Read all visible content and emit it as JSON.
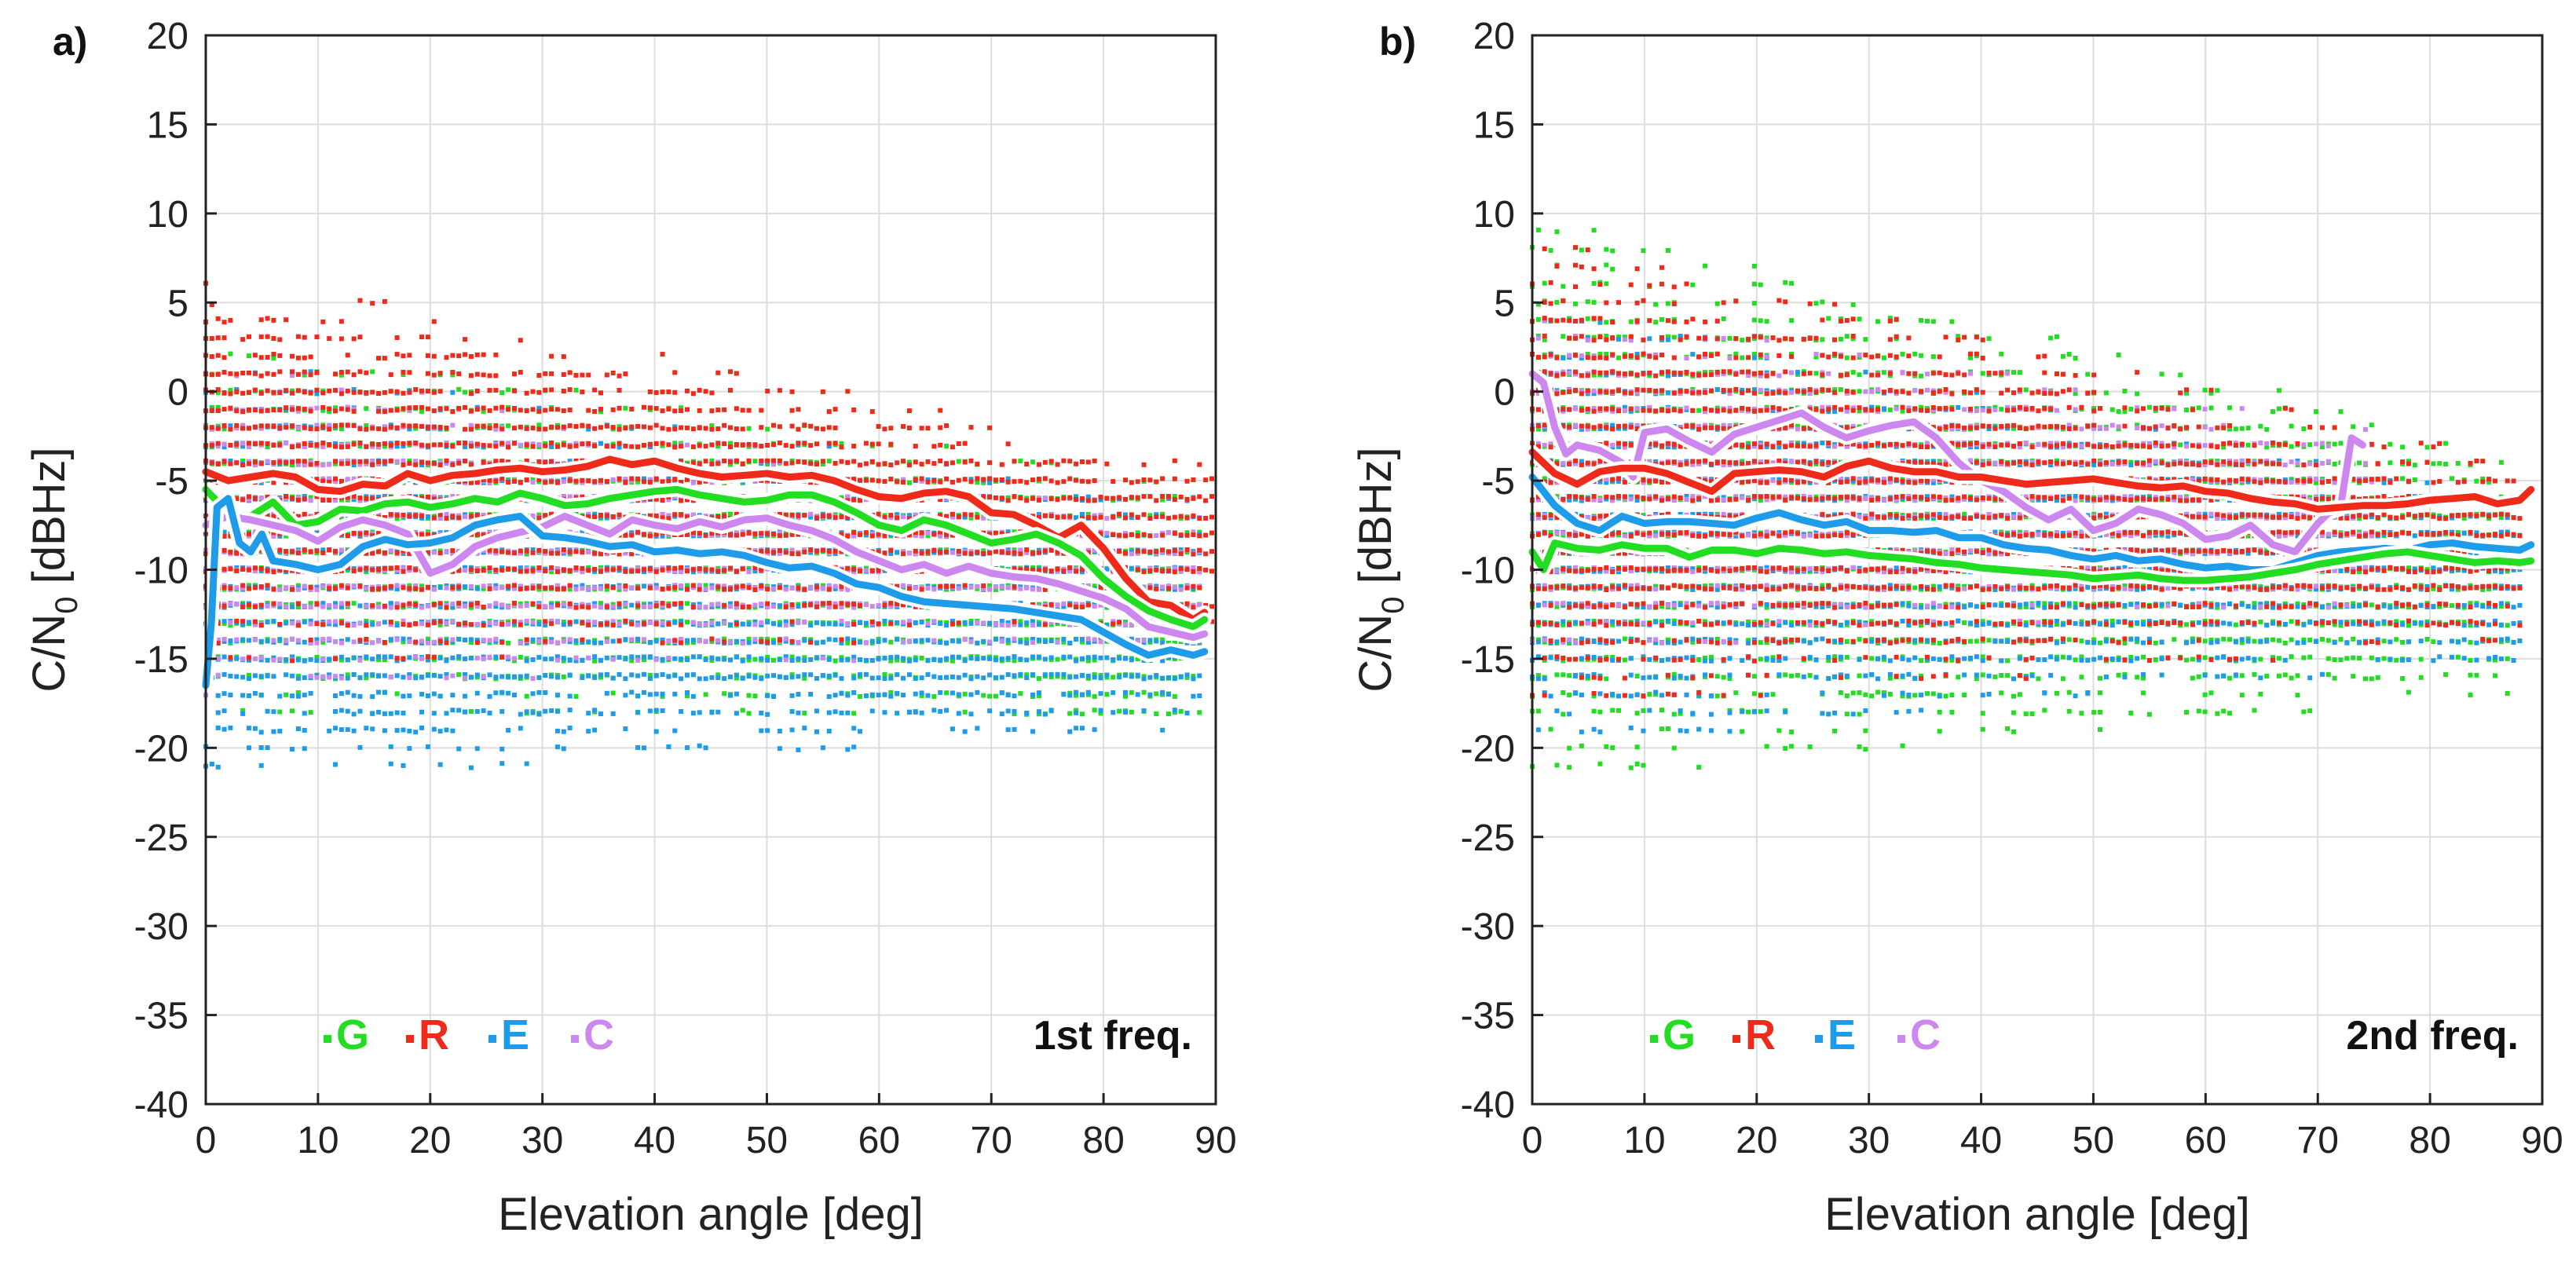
{
  "colors": {
    "G": "#22dd22",
    "R": "#ee2a1a",
    "E": "#1e9be9",
    "C": "#cc88ee",
    "axis": "#222222",
    "grid": "#dddddd"
  },
  "chart_data": [
    {
      "type": "scatter",
      "panel_label": "a)",
      "freq_label": "1st freq.",
      "xlabel": "Elevation angle [deg]",
      "ylabel_main": "C/N",
      "ylabel_sub": "0",
      "ylabel_tail": " [dBHz]",
      "xlim": [
        0,
        90
      ],
      "ylim": [
        -40,
        20
      ],
      "xticks": [
        0,
        10,
        20,
        30,
        40,
        50,
        60,
        70,
        80,
        90
      ],
      "yticks": [
        -40,
        -35,
        -30,
        -25,
        -20,
        -15,
        -10,
        -5,
        0,
        5,
        10,
        15,
        20
      ],
      "grid": true,
      "legend": [
        {
          "key": "G",
          "label": "G"
        },
        {
          "key": "R",
          "label": "R"
        },
        {
          "key": "E",
          "label": "E"
        },
        {
          "key": "C",
          "label": "C"
        }
      ],
      "scatter_ranges": {
        "G": {
          "x": [
            0,
            89
          ],
          "y_top_start": 3,
          "y_top_end": -5,
          "y_bottom_start": -18,
          "y_bottom_end": -20
        },
        "R": {
          "x": [
            0,
            90
          ],
          "y_top_start": 7,
          "y_top_end": -4,
          "y_bottom_start": -16,
          "y_bottom_end": -13
        },
        "E": {
          "x": [
            0,
            89
          ],
          "y_top_start": 2,
          "y_top_end": -6,
          "y_bottom_start": -22,
          "y_bottom_end": -19
        },
        "C": {
          "x": [
            0,
            89
          ],
          "y_top_start": 2,
          "y_top_end": -7,
          "y_bottom_start": -17,
          "y_bottom_end": -14
        }
      },
      "series": [
        {
          "name": "R",
          "x": [
            0,
            2,
            4,
            6,
            8,
            10,
            12,
            14,
            16,
            18,
            20,
            22,
            24,
            26,
            28,
            30,
            32,
            34,
            36,
            38,
            40,
            42,
            44,
            46,
            48,
            50,
            52,
            54,
            56,
            58,
            60,
            62,
            64,
            66,
            68,
            70,
            72,
            74,
            76,
            78,
            80,
            82,
            84,
            86,
            88,
            89
          ],
          "y": [
            -4.5,
            -5,
            -4.8,
            -4.6,
            -4.8,
            -5.5,
            -5.6,
            -5.2,
            -5.3,
            -4.6,
            -5,
            -4.7,
            -4.6,
            -4.4,
            -4.3,
            -4.5,
            -4.4,
            -4.2,
            -3.8,
            -4.1,
            -3.9,
            -4.3,
            -4.6,
            -4.8,
            -4.7,
            -4.6,
            -4.8,
            -4.7,
            -5,
            -5.5,
            -5.9,
            -6,
            -5.7,
            -5.6,
            -5.9,
            -6.8,
            -6.9,
            -7.5,
            -8.2,
            -7.5,
            -8.8,
            -10.5,
            -11.8,
            -12,
            -12.8,
            -12.4
          ]
        },
        {
          "name": "G",
          "x": [
            0,
            2,
            4,
            6,
            8,
            10,
            12,
            14,
            16,
            18,
            20,
            22,
            24,
            26,
            28,
            30,
            32,
            34,
            36,
            38,
            40,
            42,
            44,
            46,
            48,
            50,
            52,
            54,
            56,
            58,
            60,
            62,
            64,
            66,
            68,
            70,
            72,
            74,
            76,
            78,
            80,
            82,
            84,
            86,
            88,
            89
          ],
          "y": [
            -5.5,
            -6.8,
            -7,
            -6.2,
            -7.5,
            -7.3,
            -6.6,
            -6.7,
            -6.3,
            -6.2,
            -6.5,
            -6.3,
            -6,
            -6.2,
            -5.7,
            -6,
            -6.4,
            -6.3,
            -6,
            -5.8,
            -5.6,
            -5.5,
            -5.8,
            -6,
            -6.2,
            -6.1,
            -5.8,
            -5.8,
            -6.2,
            -6.8,
            -7.5,
            -7.8,
            -7.2,
            -7.5,
            -8,
            -8.5,
            -8.3,
            -8,
            -8.5,
            -9.2,
            -10.5,
            -11.5,
            -12.3,
            -12.8,
            -13.2,
            -12.8
          ]
        },
        {
          "name": "C",
          "x": [
            0,
            2,
            4,
            6,
            8,
            10,
            12,
            14,
            16,
            18,
            20,
            22,
            24,
            26,
            28,
            30,
            32,
            34,
            36,
            38,
            40,
            42,
            44,
            46,
            48,
            50,
            52,
            54,
            56,
            58,
            60,
            62,
            64,
            66,
            68,
            70,
            72,
            74,
            76,
            78,
            80,
            82,
            84,
            86,
            88,
            89
          ],
          "y": [
            -7.5,
            -7,
            -7.2,
            -7.5,
            -7.8,
            -8.4,
            -7.6,
            -7.2,
            -7.5,
            -8,
            -10.2,
            -9.7,
            -8.7,
            -8.2,
            -7.9,
            -7.6,
            -7,
            -7.5,
            -8,
            -7.2,
            -7.5,
            -7.7,
            -7.3,
            -7.6,
            -7.2,
            -7.1,
            -7.5,
            -7.8,
            -8.3,
            -9,
            -9.5,
            -10,
            -9.7,
            -10.2,
            -9.8,
            -10.2,
            -10.4,
            -10.5,
            -10.8,
            -11.2,
            -11.6,
            -12.2,
            -13.2,
            -13.5,
            -13.8,
            -13.6
          ]
        },
        {
          "name": "E",
          "x": [
            0,
            0.5,
            1,
            2,
            3,
            4,
            5,
            6,
            8,
            10,
            12,
            14,
            16,
            18,
            20,
            22,
            24,
            26,
            28,
            30,
            32,
            34,
            36,
            38,
            40,
            42,
            44,
            46,
            48,
            50,
            52,
            54,
            56,
            58,
            60,
            62,
            64,
            66,
            68,
            70,
            72,
            74,
            76,
            78,
            80,
            82,
            84,
            86,
            88,
            89
          ],
          "y": [
            -16.5,
            -13,
            -6.5,
            -6,
            -8.5,
            -9,
            -8,
            -9.5,
            -9.7,
            -10,
            -9.7,
            -8.7,
            -8.3,
            -8.6,
            -8.5,
            -8.2,
            -7.5,
            -7.2,
            -7,
            -8.1,
            -8.2,
            -8.4,
            -8.7,
            -8.6,
            -9,
            -8.9,
            -9.1,
            -9,
            -9.2,
            -9.6,
            -9.9,
            -9.8,
            -10.2,
            -10.8,
            -11,
            -11.5,
            -11.8,
            -11.9,
            -12,
            -12.1,
            -12.2,
            -12.4,
            -12.6,
            -12.8,
            -13.5,
            -14.2,
            -14.8,
            -14.5,
            -14.8,
            -14.6
          ]
        }
      ]
    },
    {
      "type": "scatter",
      "panel_label": "b)",
      "freq_label": "2nd freq.",
      "xlabel": "Elevation angle [deg]",
      "ylabel_main": "C/N",
      "ylabel_sub": "0",
      "ylabel_tail": " [dBHz]",
      "xlim": [
        0,
        90
      ],
      "ylim": [
        -40,
        20
      ],
      "xticks": [
        0,
        10,
        20,
        30,
        40,
        50,
        60,
        70,
        80,
        90
      ],
      "yticks": [
        -40,
        -35,
        -30,
        -25,
        -20,
        -15,
        -10,
        -5,
        0,
        5,
        10,
        15,
        20
      ],
      "grid": true,
      "legend": [
        {
          "key": "G",
          "label": "G"
        },
        {
          "key": "R",
          "label": "R"
        },
        {
          "key": "E",
          "label": "E"
        },
        {
          "key": "C",
          "label": "C"
        }
      ],
      "scatter_ranges": {
        "G": {
          "x": [
            0,
            87
          ],
          "y_top_start": 10,
          "y_top_end": -3,
          "y_bottom_start": -22,
          "y_bottom_end": -17
        },
        "R": {
          "x": [
            0,
            88
          ],
          "y_top_start": 9,
          "y_top_end": -4,
          "y_bottom_start": -18,
          "y_bottom_end": -14
        },
        "E": {
          "x": [
            0,
            88
          ],
          "y_top_start": 5,
          "y_top_end": -6,
          "y_bottom_start": -20,
          "y_bottom_end": -15
        },
        "C": {
          "x": [
            0,
            75
          ],
          "y_top_start": 5,
          "y_top_end": -2,
          "y_bottom_start": -15,
          "y_bottom_end": -12
        }
      },
      "series": [
        {
          "name": "C",
          "x": [
            0,
            1,
            2,
            3,
            4,
            6,
            8,
            9,
            10,
            12,
            14,
            16,
            18,
            20,
            22,
            24,
            26,
            28,
            30,
            32,
            34,
            36,
            38,
            40,
            42,
            44,
            46,
            48,
            50,
            52,
            54,
            56,
            58,
            60,
            62,
            64,
            66,
            68,
            70,
            71,
            72,
            73,
            74
          ],
          "y": [
            1,
            0.5,
            -2,
            -3.5,
            -3,
            -3.3,
            -4,
            -4.8,
            -2.3,
            -2.1,
            -2.8,
            -3.4,
            -2.4,
            -2,
            -1.6,
            -1.2,
            -2,
            -2.6,
            -2.2,
            -1.9,
            -1.7,
            -2.6,
            -4,
            -5,
            -5.6,
            -6.5,
            -7.2,
            -6.6,
            -7.8,
            -7.4,
            -6.6,
            -6.9,
            -7.4,
            -8.3,
            -8.1,
            -7.5,
            -8.6,
            -9,
            -7.4,
            -6.8,
            -6.6,
            -2.6,
            -3
          ]
        },
        {
          "name": "R",
          "x": [
            0,
            2,
            4,
            6,
            8,
            10,
            12,
            14,
            16,
            18,
            20,
            22,
            24,
            26,
            28,
            30,
            32,
            34,
            36,
            38,
            40,
            42,
            44,
            46,
            48,
            50,
            52,
            54,
            56,
            58,
            60,
            62,
            64,
            66,
            68,
            70,
            72,
            74,
            76,
            78,
            80,
            82,
            84,
            86,
            88,
            89
          ],
          "y": [
            -3.4,
            -4.6,
            -5.2,
            -4.5,
            -4.3,
            -4.3,
            -4.6,
            -5.1,
            -5.6,
            -4.6,
            -4.5,
            -4.4,
            -4.5,
            -4.8,
            -4.2,
            -3.9,
            -4.3,
            -4.5,
            -4.5,
            -4.8,
            -4.8,
            -5,
            -5.2,
            -5.1,
            -5,
            -4.9,
            -5.1,
            -5.3,
            -5.4,
            -5.3,
            -5.6,
            -5.7,
            -6,
            -6.2,
            -6.3,
            -6.6,
            -6.5,
            -6.4,
            -6.4,
            -6.3,
            -6.1,
            -6,
            -5.9,
            -6.3,
            -6.1,
            -5.5
          ]
        },
        {
          "name": "E",
          "x": [
            0,
            2,
            4,
            6,
            8,
            10,
            12,
            14,
            16,
            18,
            20,
            22,
            24,
            26,
            28,
            30,
            32,
            34,
            36,
            38,
            40,
            42,
            44,
            46,
            48,
            50,
            52,
            54,
            56,
            58,
            60,
            62,
            64,
            66,
            68,
            70,
            72,
            74,
            76,
            78,
            80,
            82,
            84,
            86,
            88,
            89
          ],
          "y": [
            -4.8,
            -6.4,
            -7.4,
            -7.8,
            -7,
            -7.4,
            -7.3,
            -7.3,
            -7.4,
            -7.5,
            -7.1,
            -6.8,
            -7.2,
            -7.5,
            -7.3,
            -7.8,
            -7.8,
            -7.9,
            -7.8,
            -8.2,
            -8.2,
            -8.6,
            -8.8,
            -8.9,
            -9.2,
            -9.4,
            -9.2,
            -9.5,
            -9.4,
            -9.7,
            -9.9,
            -9.8,
            -10,
            -10,
            -9.6,
            -9.2,
            -9,
            -8.9,
            -8.8,
            -8.9,
            -8.6,
            -8.5,
            -8.7,
            -8.8,
            -8.9,
            -8.6
          ]
        },
        {
          "name": "G",
          "x": [
            0,
            1,
            2,
            4,
            6,
            8,
            10,
            12,
            14,
            16,
            18,
            20,
            22,
            24,
            26,
            28,
            30,
            32,
            34,
            36,
            38,
            40,
            42,
            44,
            46,
            48,
            50,
            52,
            54,
            56,
            58,
            60,
            62,
            64,
            66,
            68,
            70,
            72,
            74,
            76,
            78,
            80,
            82,
            84,
            86,
            88,
            89
          ],
          "y": [
            -9,
            -10,
            -8.5,
            -8.8,
            -8.9,
            -8.6,
            -8.8,
            -8.8,
            -9.3,
            -8.9,
            -8.9,
            -9.1,
            -8.8,
            -8.9,
            -9.1,
            -9,
            -9.2,
            -9.3,
            -9.4,
            -9.6,
            -9.7,
            -9.9,
            -10,
            -10.1,
            -10.2,
            -10.3,
            -10.5,
            -10.4,
            -10.3,
            -10.5,
            -10.6,
            -10.6,
            -10.5,
            -10.4,
            -10.2,
            -10,
            -9.7,
            -9.5,
            -9.3,
            -9.1,
            -9,
            -9.2,
            -9.4,
            -9.6,
            -9.5,
            -9.6,
            -9.5
          ]
        }
      ]
    }
  ]
}
